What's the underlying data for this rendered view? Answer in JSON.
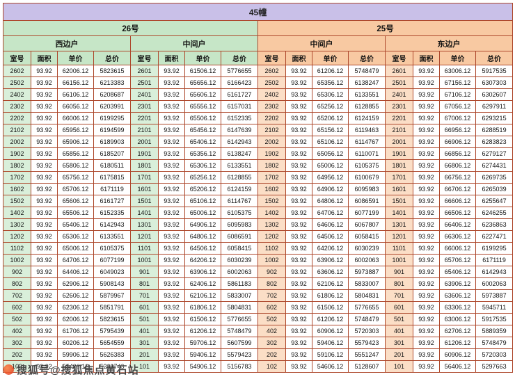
{
  "title": "45幢",
  "buildings": [
    {
      "label": "26号"
    },
    {
      "label": "25号"
    }
  ],
  "groups": [
    {
      "building": "26号",
      "unit_type": "西边户"
    },
    {
      "building": "26号",
      "unit_type": "中间户"
    },
    {
      "building": "25号",
      "unit_type": "中间户"
    },
    {
      "building": "25号",
      "unit_type": "东边户"
    }
  ],
  "columns": [
    "室号",
    "面积",
    "单价",
    "总价"
  ],
  "colors": {
    "title_bg": "#c9c0e8",
    "green_bg": "#c6e6c7",
    "green_cell_bg": "#d9efda",
    "orange_bg": "#f8c9a2",
    "orange_cell_bg": "#fbdec6",
    "grid_border": "#ad472b"
  },
  "watermark": {
    "text": "搜狐号@搜狐焦点黄石站",
    "icon": "sohu-logo-icon"
  },
  "rows": [
    [
      "2602",
      "93.92",
      "62006.12",
      "5823615",
      "2601",
      "93.92",
      "61506.12",
      "5776655",
      "2602",
      "93.92",
      "61206.12",
      "5748479",
      "2601",
      "93.92",
      "63006.12",
      "5917535"
    ],
    [
      "2502",
      "93.92",
      "66156.12",
      "6213383",
      "2501",
      "93.92",
      "65656.12",
      "6166423",
      "2502",
      "93.92",
      "65356.12",
      "6138247",
      "2501",
      "93.92",
      "67156.12",
      "6307303"
    ],
    [
      "2402",
      "93.92",
      "66106.12",
      "6208687",
      "2401",
      "93.92",
      "65606.12",
      "6161727",
      "2402",
      "93.92",
      "65306.12",
      "6133551",
      "2401",
      "93.92",
      "67106.12",
      "6302607"
    ],
    [
      "2302",
      "93.92",
      "66056.12",
      "6203991",
      "2301",
      "93.92",
      "65556.12",
      "6157031",
      "2302",
      "93.92",
      "65256.12",
      "6128855",
      "2301",
      "93.92",
      "67056.12",
      "6297911"
    ],
    [
      "2202",
      "93.92",
      "66006.12",
      "6199295",
      "2201",
      "93.92",
      "65506.12",
      "6152335",
      "2202",
      "93.92",
      "65206.12",
      "6124159",
      "2201",
      "93.92",
      "67006.12",
      "6293215"
    ],
    [
      "2102",
      "93.92",
      "65956.12",
      "6194599",
      "2101",
      "93.92",
      "65456.12",
      "6147639",
      "2102",
      "93.92",
      "65156.12",
      "6119463",
      "2101",
      "93.92",
      "66956.12",
      "6288519"
    ],
    [
      "2002",
      "93.92",
      "65906.12",
      "6189903",
      "2001",
      "93.92",
      "65406.12",
      "6142943",
      "2002",
      "93.92",
      "65106.12",
      "6114767",
      "2001",
      "93.92",
      "66906.12",
      "6283823"
    ],
    [
      "1902",
      "93.92",
      "65856.12",
      "6185207",
      "1901",
      "93.92",
      "65356.12",
      "6138247",
      "1902",
      "93.92",
      "65056.12",
      "6110071",
      "1901",
      "93.92",
      "66856.12",
      "6279127"
    ],
    [
      "1802",
      "93.92",
      "65806.12",
      "6180511",
      "1801",
      "93.92",
      "65306.12",
      "6133551",
      "1802",
      "93.92",
      "65006.12",
      "6105375",
      "1801",
      "93.92",
      "66806.12",
      "6274431"
    ],
    [
      "1702",
      "93.92",
      "65756.12",
      "6175815",
      "1701",
      "93.92",
      "65256.12",
      "6128855",
      "1702",
      "93.92",
      "64956.12",
      "6100679",
      "1701",
      "93.92",
      "66756.12",
      "6269735"
    ],
    [
      "1602",
      "93.92",
      "65706.12",
      "6171119",
      "1601",
      "93.92",
      "65206.12",
      "6124159",
      "1602",
      "93.92",
      "64906.12",
      "6095983",
      "1601",
      "93.92",
      "66706.12",
      "6265039"
    ],
    [
      "1502",
      "93.92",
      "65606.12",
      "6161727",
      "1501",
      "93.92",
      "65106.12",
      "6114767",
      "1502",
      "93.92",
      "64806.12",
      "6086591",
      "1501",
      "93.92",
      "66606.12",
      "6255647"
    ],
    [
      "1402",
      "93.92",
      "65506.12",
      "6152335",
      "1401",
      "93.92",
      "65006.12",
      "6105375",
      "1402",
      "93.92",
      "64706.12",
      "6077199",
      "1401",
      "93.92",
      "66506.12",
      "6246255"
    ],
    [
      "1302",
      "93.92",
      "65406.12",
      "6142943",
      "1301",
      "93.92",
      "64906.12",
      "6095983",
      "1302",
      "93.92",
      "64606.12",
      "6067807",
      "1301",
      "93.92",
      "66406.12",
      "6236863"
    ],
    [
      "1202",
      "93.92",
      "65306.12",
      "6133551",
      "1201",
      "93.92",
      "64806.12",
      "6086591",
      "1202",
      "93.92",
      "64506.12",
      "6058415",
      "1201",
      "93.92",
      "66306.12",
      "6227471"
    ],
    [
      "1102",
      "93.92",
      "65006.12",
      "6105375",
      "1101",
      "93.92",
      "64506.12",
      "6058415",
      "1102",
      "93.92",
      "64206.12",
      "6030239",
      "1101",
      "93.92",
      "66006.12",
      "6199295"
    ],
    [
      "1002",
      "93.92",
      "64706.12",
      "6077199",
      "1001",
      "93.92",
      "64206.12",
      "6030239",
      "1002",
      "93.92",
      "63906.12",
      "6002063",
      "1001",
      "93.92",
      "65706.12",
      "6171119"
    ],
    [
      "902",
      "93.92",
      "64406.12",
      "6049023",
      "901",
      "93.92",
      "63906.12",
      "6002063",
      "902",
      "93.92",
      "63606.12",
      "5973887",
      "901",
      "93.92",
      "65406.12",
      "6142943"
    ],
    [
      "802",
      "93.92",
      "62906.12",
      "5908143",
      "801",
      "93.92",
      "62406.12",
      "5861183",
      "802",
      "93.92",
      "62106.12",
      "5833007",
      "801",
      "93.92",
      "63906.12",
      "6002063"
    ],
    [
      "702",
      "93.92",
      "62606.12",
      "5879967",
      "701",
      "93.92",
      "62106.12",
      "5833007",
      "702",
      "93.92",
      "61806.12",
      "5804831",
      "701",
      "93.92",
      "63606.12",
      "5973887"
    ],
    [
      "602",
      "93.92",
      "62306.12",
      "5851791",
      "601",
      "93.92",
      "61806.12",
      "5804831",
      "602",
      "93.92",
      "61506.12",
      "5776655",
      "601",
      "93.92",
      "63306.12",
      "5945711"
    ],
    [
      "502",
      "93.92",
      "62006.12",
      "5823615",
      "501",
      "93.92",
      "61506.12",
      "5776655",
      "502",
      "93.92",
      "61206.12",
      "5748479",
      "501",
      "93.92",
      "63006.12",
      "5917535"
    ],
    [
      "402",
      "93.92",
      "61706.12",
      "5795439",
      "401",
      "93.92",
      "61206.12",
      "5748479",
      "402",
      "93.92",
      "60906.12",
      "5720303",
      "401",
      "93.92",
      "62706.12",
      "5889359"
    ],
    [
      "302",
      "93.92",
      "60206.12",
      "5654559",
      "301",
      "93.92",
      "59706.12",
      "5607599",
      "302",
      "93.92",
      "59406.12",
      "5579423",
      "301",
      "93.92",
      "61206.12",
      "5748479"
    ],
    [
      "202",
      "93.92",
      "59906.12",
      "5626383",
      "201",
      "93.92",
      "59406.12",
      "5579423",
      "202",
      "93.92",
      "59106.12",
      "5551247",
      "201",
      "93.92",
      "60906.12",
      "5720303"
    ],
    [
      "102",
      "93.92",
      "55406.12",
      "5203743",
      "101",
      "93.92",
      "54906.12",
      "5156783",
      "102",
      "93.92",
      "54606.12",
      "5128607",
      "101",
      "93.92",
      "56406.12",
      "5297663"
    ]
  ]
}
